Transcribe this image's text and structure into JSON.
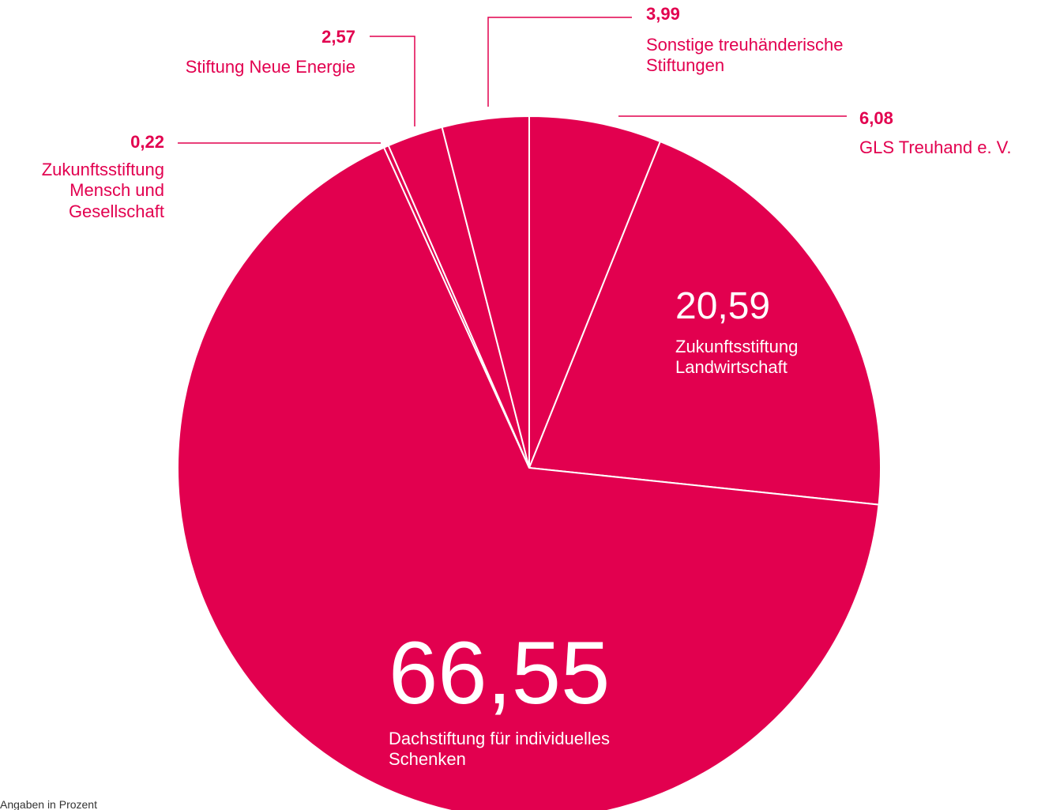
{
  "chart_data": {
    "type": "pie",
    "categories": [
      "GLS Treuhand e. V.",
      "Zukunftsstiftung Landwirtschaft",
      "Dachstiftung für individuelles Schenken",
      "Zukunftsstiftung Mensch und Gesellschaft",
      "Stiftung Neue Energie",
      "Sonstige treuhänderische Stiftungen"
    ],
    "values": [
      6.08,
      20.59,
      66.55,
      0.22,
      2.57,
      3.99
    ],
    "value_labels": [
      "6,08",
      "20,59",
      "66,55",
      "0,22",
      "2,57",
      "3,99"
    ],
    "color": "#e2004f",
    "footnote": "Angaben in Prozent"
  }
}
